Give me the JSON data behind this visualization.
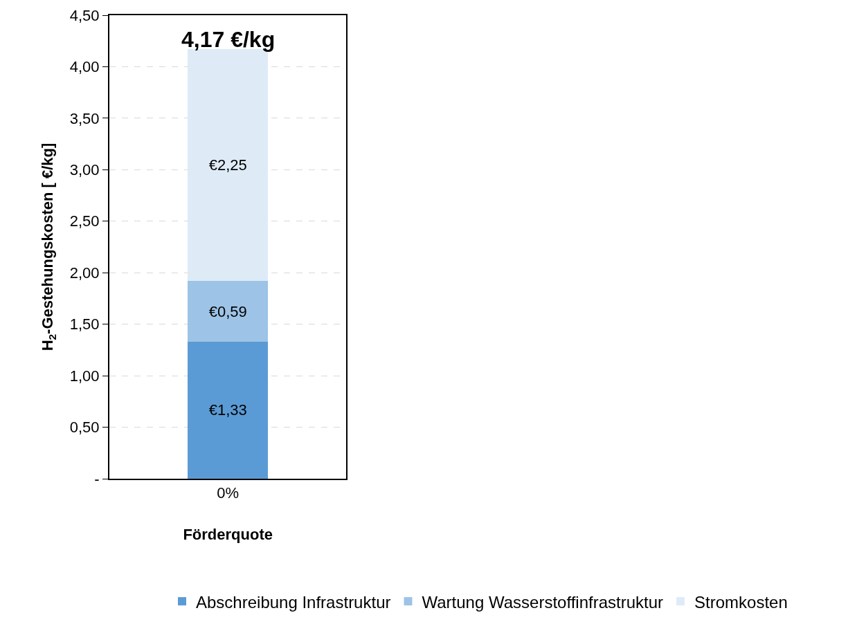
{
  "chart_data": {
    "type": "bar",
    "stacked": true,
    "xlabel": "Förderquote",
    "ylabel": "H$_{2}$-Gestehungskosten [ €/kg]",
    "categories": [
      "0%"
    ],
    "series": [
      {
        "name": "Abschreibung Infrastruktur",
        "color": "#5b9bd5",
        "values": [
          1.33
        ],
        "value_labels": [
          "€1,33"
        ]
      },
      {
        "name": "Wartung Wasserstoffinfrastruktur",
        "color": "#9dc3e6",
        "values": [
          0.59
        ],
        "value_labels": [
          "€0,59"
        ]
      },
      {
        "name": "Stromkosten",
        "color": "#deebf7",
        "values": [
          2.25
        ],
        "value_labels": [
          "€2,25"
        ]
      }
    ],
    "totals": [
      "4,17 €/kg"
    ],
    "ylim": [
      0,
      4.5
    ],
    "yticks": [
      {
        "value": 0,
        "label": "-"
      },
      {
        "value": 0.5,
        "label": "0,50"
      },
      {
        "value": 1,
        "label": "1,00"
      },
      {
        "value": 1.5,
        "label": "1,50"
      },
      {
        "value": 2,
        "label": "2,00"
      },
      {
        "value": 2.5,
        "label": "2,50"
      },
      {
        "value": 3,
        "label": "3,00"
      },
      {
        "value": 3.5,
        "label": "3,50"
      },
      {
        "value": 4,
        "label": "4,00"
      },
      {
        "value": 4.5,
        "label": "4,50"
      }
    ],
    "grid": "y",
    "legend": "bottom"
  }
}
